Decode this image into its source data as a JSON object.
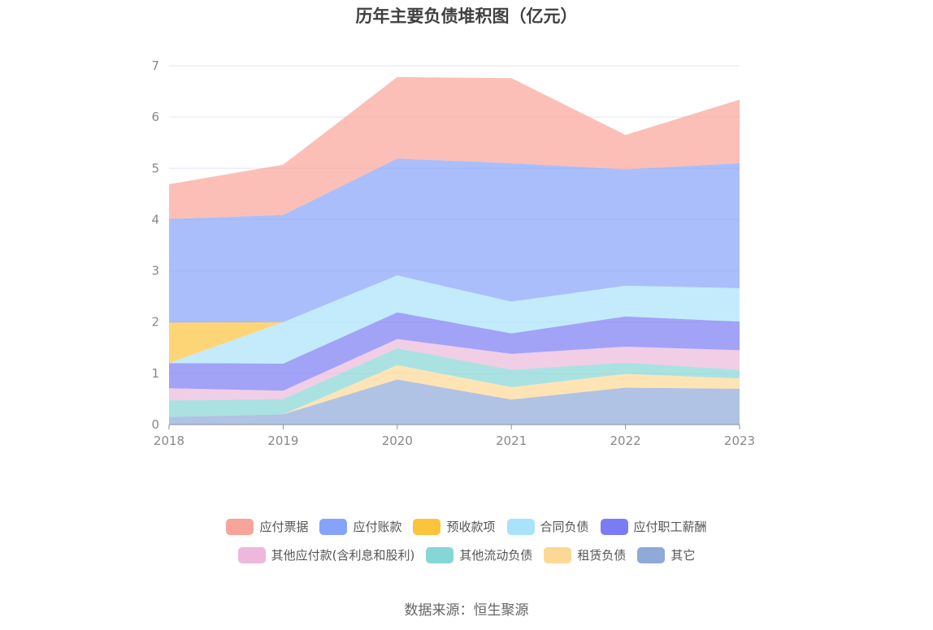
{
  "chart_data": {
    "type": "area",
    "stacked": true,
    "title": "历年主要负债堆积图（亿元）",
    "xlabel": "",
    "ylabel": "",
    "x": [
      "2018",
      "2019",
      "2020",
      "2021",
      "2022",
      "2023"
    ],
    "ylim": [
      0,
      7
    ],
    "yticks": [
      0,
      1,
      2,
      3,
      4,
      5,
      6,
      7
    ],
    "grid": true,
    "legend_position": "bottom",
    "series": [
      {
        "name": "其它",
        "color": "#8fa9d8",
        "values": [
          0.15,
          0.2,
          0.88,
          0.49,
          0.72,
          0.7
        ]
      },
      {
        "name": "租赁负债",
        "color": "#fdd895",
        "values": [
          0.0,
          0.0,
          0.28,
          0.24,
          0.27,
          0.2
        ]
      },
      {
        "name": "其他流动负债",
        "color": "#86d6d6",
        "values": [
          0.32,
          0.3,
          0.33,
          0.34,
          0.22,
          0.17
        ]
      },
      {
        "name": "其他应付款(含利息和股利)",
        "color": "#edb8dc",
        "values": [
          0.24,
          0.16,
          0.18,
          0.31,
          0.31,
          0.38
        ]
      },
      {
        "name": "应付职工薪酬",
        "color": "#7b7cf3",
        "values": [
          0.49,
          0.53,
          0.52,
          0.4,
          0.59,
          0.56
        ]
      },
      {
        "name": "合同负债",
        "color": "#a9e2fb",
        "values": [
          0.0,
          0.81,
          0.72,
          0.62,
          0.6,
          0.65
        ]
      },
      {
        "name": "预收款项",
        "color": "#fcc33d",
        "values": [
          0.79,
          0.0,
          0.0,
          0.0,
          0.0,
          0.0
        ]
      },
      {
        "name": "应付账款",
        "color": "#86a3fb",
        "values": [
          2.02,
          2.09,
          2.28,
          2.7,
          2.27,
          2.44
        ]
      },
      {
        "name": "应付票据",
        "color": "#f9a498",
        "values": [
          0.68,
          0.98,
          1.59,
          1.66,
          0.67,
          1.24
        ]
      }
    ],
    "legend_order": [
      "应付票据",
      "应付账款",
      "预收款项",
      "合同负债",
      "应付职工薪酬",
      "其他应付款(含利息和股利)",
      "其他流动负债",
      "租赁负债",
      "其它"
    ]
  },
  "source": "数据来源：恒生聚源"
}
